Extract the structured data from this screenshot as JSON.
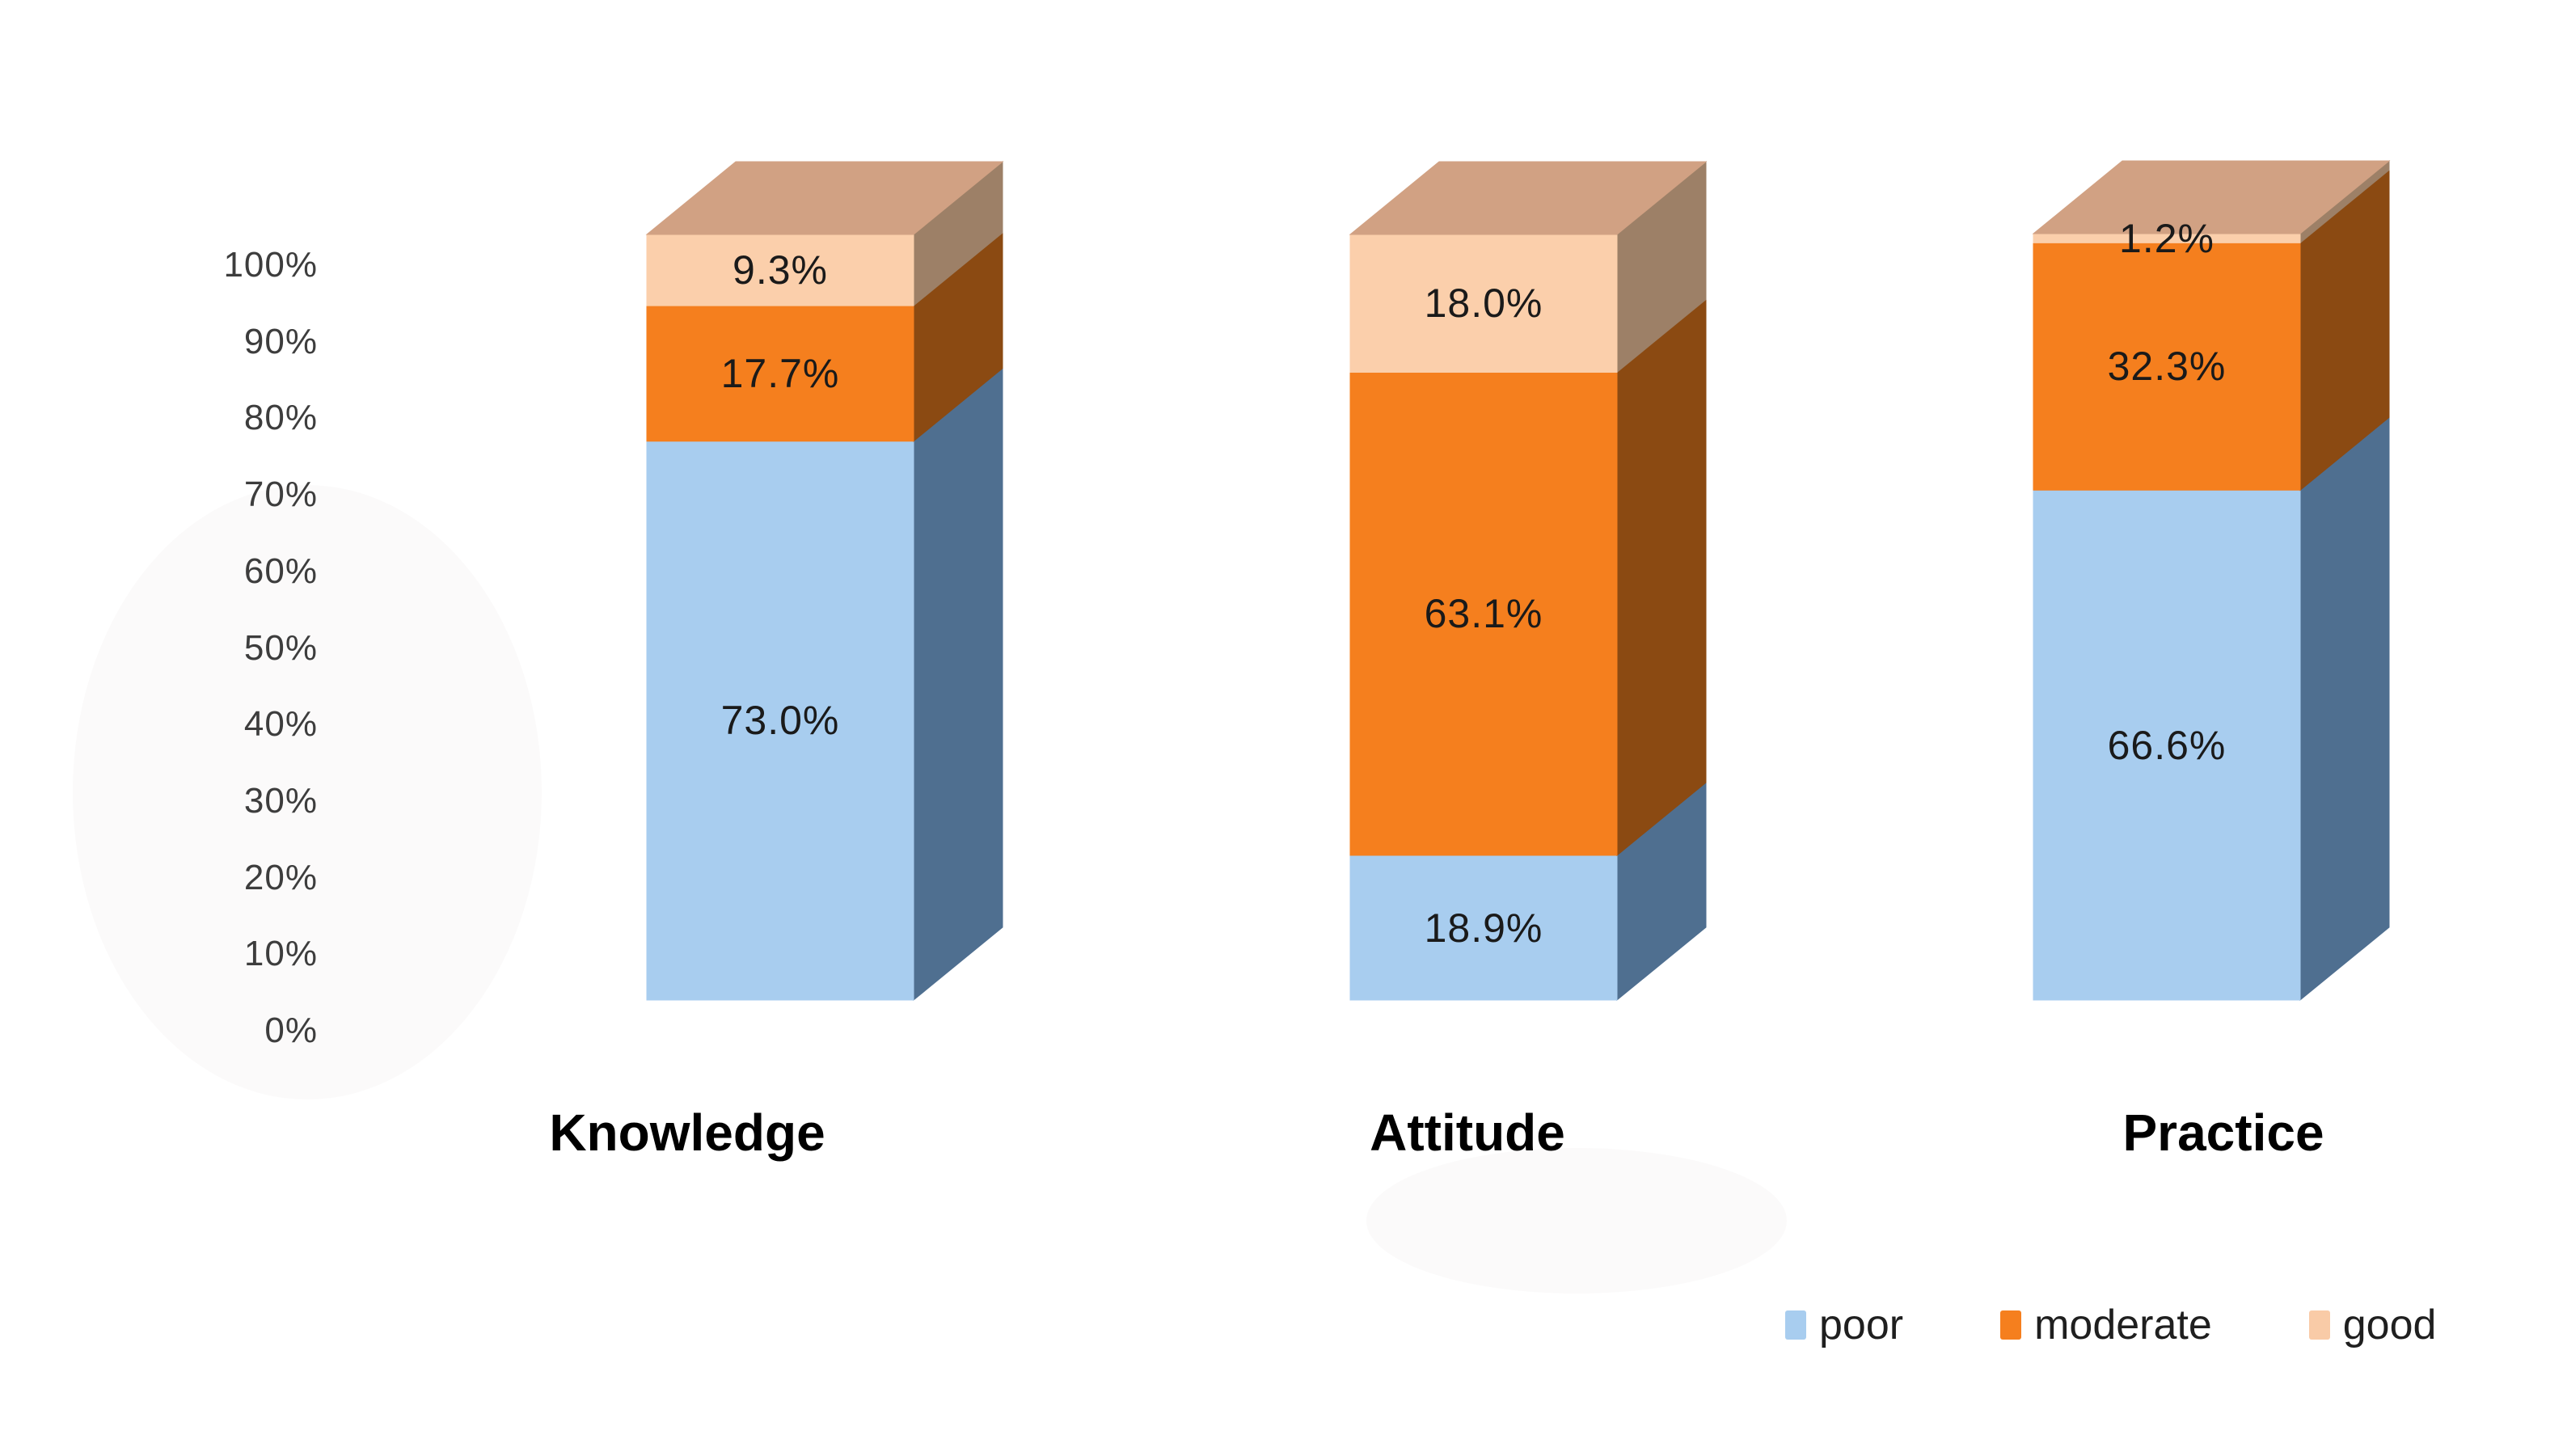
{
  "chart_data": {
    "type": "bar",
    "subtype": "stacked-column-3d",
    "title": "",
    "xlabel": "",
    "ylabel": "",
    "categories": [
      "Knowledge",
      "Attitude",
      "Practice"
    ],
    "stack_order_bottom_to_top": [
      "poor",
      "moderate",
      "good"
    ],
    "series": [
      {
        "name": "poor",
        "front_color": "#A8CDEF",
        "side_color": "#4F6F90",
        "values": [
          73.0,
          18.9,
          66.6
        ],
        "labels": [
          "73.0%",
          "18.9%",
          "66.6%"
        ]
      },
      {
        "name": "moderate",
        "front_color": "#F57F1E",
        "side_color": "#8B4A12",
        "values": [
          17.7,
          63.1,
          32.3
        ],
        "labels": [
          "17.7%",
          "63.1%",
          "32.3%"
        ]
      },
      {
        "name": "good",
        "front_color": "#FBCFAB",
        "side_color": "#9D8067",
        "values": [
          9.3,
          18.0,
          1.2
        ],
        "labels": [
          "9.3%",
          "18.0%",
          "1.2%"
        ]
      }
    ],
    "top_face_color": "#D1A183",
    "y_axis": {
      "min": 0,
      "max": 100,
      "tick_labels": [
        "100%",
        "90%",
        "80%",
        "70%",
        "60%",
        "50%",
        "40%",
        "30%",
        "20%",
        "10%",
        "0%"
      ]
    },
    "grid": false,
    "legend": {
      "position": "bottom-right",
      "items": [
        {
          "label": "poor",
          "color": "#A8CDEF"
        },
        {
          "label": "moderate",
          "color": "#F57F1E"
        },
        {
          "label": "good",
          "color": "#F9CBA7"
        }
      ]
    }
  }
}
